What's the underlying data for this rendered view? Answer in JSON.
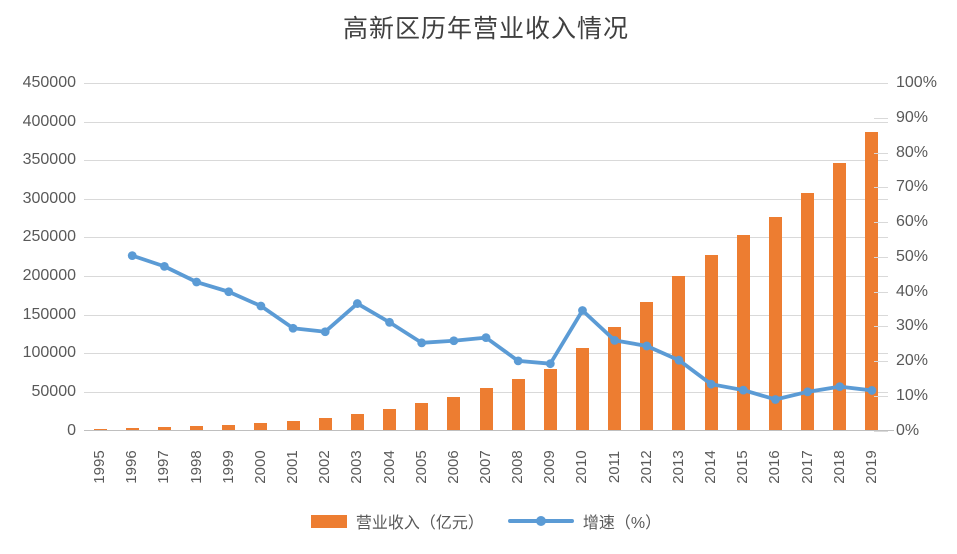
{
  "title": "高新区历年营业收入情况",
  "legend": {
    "revenue_label": "营业收入（亿元）",
    "growth_label": "增速（%）"
  },
  "colors": {
    "bar": "#ED7D31",
    "line": "#5B9BD5",
    "gridline": "#D9D9D9",
    "axis_line": "#BFBFBF",
    "axis_text": "#595959",
    "title_text": "#404040"
  },
  "chart_data": {
    "type": "bar",
    "subtype": "bar+line combo, dual axis",
    "title": "高新区历年营业收入情况",
    "categories": [
      1995,
      1996,
      1997,
      1998,
      1999,
      2000,
      2001,
      2002,
      2003,
      2004,
      2005,
      2006,
      2007,
      2008,
      2009,
      2010,
      2011,
      2012,
      2013,
      2014,
      2015,
      2016,
      2017,
      2018,
      2019
    ],
    "series": [
      {
        "name": "营业收入（亿元）",
        "type": "bar",
        "axis": "left",
        "color": "#ED7D31",
        "values": [
          1529,
          2300,
          3388,
          4840,
          6775,
          9209,
          11928,
          15326,
          20939,
          27463,
          34416,
          43320,
          54926,
          65986,
          78707,
          105917,
          133425,
          166000,
          199672,
          226500,
          253100,
          276000,
          307000,
          346000,
          386000
        ]
      },
      {
        "name": "增速（%）",
        "type": "line",
        "axis": "right",
        "color": "#5B9BD5",
        "values": [
          null,
          50.4,
          47.3,
          42.8,
          40.0,
          35.9,
          29.5,
          28.5,
          36.6,
          31.2,
          25.3,
          25.9,
          26.8,
          20.1,
          19.3,
          34.6,
          26.0,
          24.4,
          20.3,
          13.4,
          11.7,
          9.0,
          11.2,
          12.7,
          11.6
        ]
      }
    ],
    "left_axis": {
      "min": 0,
      "max": 450000,
      "tick_step": 50000,
      "tick_labels": [
        "0",
        "50000",
        "100000",
        "150000",
        "200000",
        "250000",
        "300000",
        "350000",
        "400000",
        "450000"
      ]
    },
    "right_axis": {
      "min": 0,
      "max": 100,
      "tick_step": 10,
      "tick_labels": [
        "0%",
        "10%",
        "20%",
        "30%",
        "40%",
        "50%",
        "60%",
        "70%",
        "80%",
        "90%",
        "100%"
      ]
    },
    "grid": "horizontal gridlines on (primary axis)",
    "legend_position": "bottom"
  }
}
